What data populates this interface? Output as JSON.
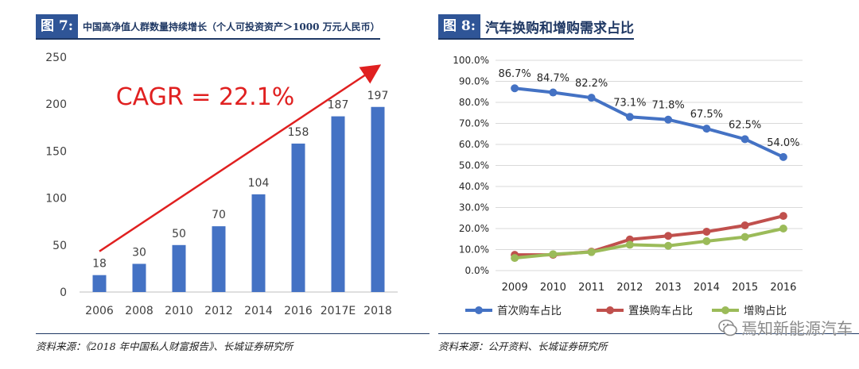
{
  "left": {
    "label": "图 7:",
    "title": "中国高净值人群数量持续增长（个人可投资资产＞1000 万元人民币）",
    "source": "资料来源：《2018 年中国私人财富报告》、长城证券研究所",
    "annotation": "CAGR = 22.1%"
  },
  "right": {
    "label": "图 8:",
    "title": "汽车换购和增购需求占比",
    "source": "资料来源：公开资料、长城证券研究所"
  },
  "watermark": {
    "text": "焉知新能源汽车",
    "icon": "wechat-icon"
  },
  "chart_data": [
    {
      "type": "bar",
      "title": "中国高净值人群数量持续增长（个人可投资资产＞1000 万元人民币）",
      "categories": [
        "2006",
        "2008",
        "2010",
        "2012",
        "2014",
        "2016",
        "2017E",
        "2018"
      ],
      "values": [
        18,
        30,
        50,
        70,
        104,
        158,
        187,
        197
      ],
      "ylim": [
        0,
        250
      ],
      "yticks": [
        0,
        50,
        100,
        150,
        200,
        250
      ],
      "color": "#4472c4",
      "annotation": "CAGR = 22.1%",
      "annotation_color": "#e02020",
      "grid": false
    },
    {
      "type": "line",
      "title": "汽车换购和增购需求占比",
      "x": [
        "2009",
        "2010",
        "2011",
        "2012",
        "2013",
        "2014",
        "2015",
        "2016"
      ],
      "ylim": [
        0,
        100
      ],
      "yticks": [
        "0.0%",
        "10.0%",
        "20.0%",
        "30.0%",
        "40.0%",
        "50.0%",
        "60.0%",
        "70.0%",
        "80.0%",
        "90.0%",
        "100.0%"
      ],
      "grid": true,
      "legend_position": "bottom",
      "series": [
        {
          "name": "首次购车占比",
          "color": "#4472c4",
          "values": [
            86.7,
            84.7,
            82.2,
            73.1,
            71.8,
            67.5,
            62.5,
            54.0
          ],
          "labels": [
            "86.7%",
            "84.7%",
            "82.2%",
            "73.1%",
            "71.8%",
            "67.5%",
            "62.5%",
            "54.0%"
          ]
        },
        {
          "name": "置换购车占比",
          "color": "#c0504d",
          "values": [
            7.5,
            7.5,
            9.0,
            14.8,
            16.5,
            18.5,
            21.5,
            26.0
          ]
        },
        {
          "name": "增购占比",
          "color": "#9bbb59",
          "values": [
            6.0,
            7.8,
            8.8,
            12.3,
            11.8,
            14.0,
            16.0,
            20.0
          ]
        }
      ]
    }
  ]
}
